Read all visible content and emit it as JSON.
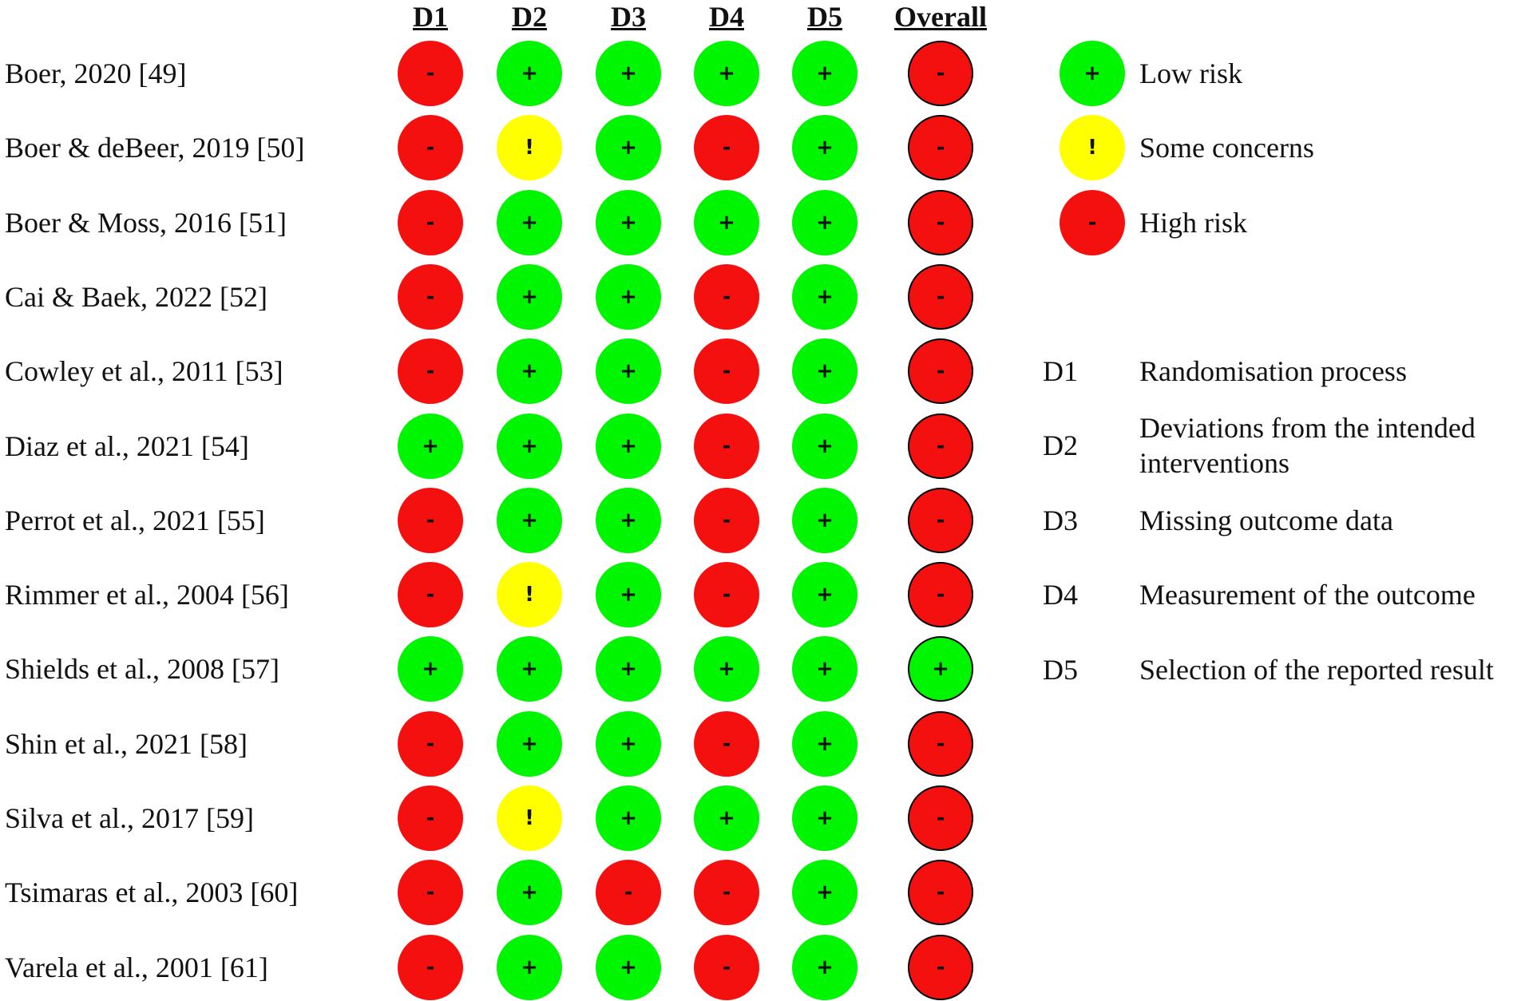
{
  "chart_data": {
    "type": "table",
    "columns": [
      "D1",
      "D2",
      "D3",
      "D4",
      "D5",
      "Overall"
    ],
    "rows": [
      {
        "study": "Boer, 2020 [49]",
        "judgements": [
          "high",
          "low",
          "low",
          "low",
          "low",
          "high"
        ]
      },
      {
        "study": "Boer & deBeer, 2019 [50]",
        "judgements": [
          "high",
          "some",
          "low",
          "high",
          "low",
          "high"
        ]
      },
      {
        "study": "Boer & Moss, 2016 [51]",
        "judgements": [
          "high",
          "low",
          "low",
          "low",
          "low",
          "high"
        ]
      },
      {
        "study": "Cai & Baek, 2022 [52]",
        "judgements": [
          "high",
          "low",
          "low",
          "high",
          "low",
          "high"
        ]
      },
      {
        "study": "Cowley et al., 2011 [53]",
        "judgements": [
          "high",
          "low",
          "low",
          "high",
          "low",
          "high"
        ]
      },
      {
        "study": "Diaz et al., 2021 [54]",
        "judgements": [
          "low",
          "low",
          "low",
          "high",
          "low",
          "high"
        ]
      },
      {
        "study": "Perrot et al., 2021 [55]",
        "judgements": [
          "high",
          "low",
          "low",
          "high",
          "low",
          "high"
        ]
      },
      {
        "study": "Rimmer et al., 2004 [56]",
        "judgements": [
          "high",
          "some",
          "low",
          "high",
          "low",
          "high"
        ]
      },
      {
        "study": "Shields et al., 2008 [57]",
        "judgements": [
          "low",
          "low",
          "low",
          "low",
          "low",
          "low"
        ]
      },
      {
        "study": "Shin et al., 2021 [58]",
        "judgements": [
          "high",
          "low",
          "low",
          "high",
          "low",
          "high"
        ]
      },
      {
        "study": "Silva et al., 2017 [59]",
        "judgements": [
          "high",
          "some",
          "low",
          "low",
          "low",
          "high"
        ]
      },
      {
        "study": "Tsimaras et al., 2003 [60]",
        "judgements": [
          "high",
          "low",
          "high",
          "high",
          "low",
          "high"
        ]
      },
      {
        "study": "Varela et al., 2001 [61]",
        "judgements": [
          "high",
          "low",
          "low",
          "high",
          "low",
          "high"
        ]
      }
    ],
    "judgement_key": {
      "low": {
        "symbol": "+",
        "label": "Low risk",
        "color": "#00f500"
      },
      "some": {
        "symbol": "!",
        "label": "Some concerns",
        "color": "#ffff00"
      },
      "high": {
        "symbol": "-",
        "label": "High risk",
        "color": "#f51010"
      }
    },
    "domains": [
      {
        "code": "D1",
        "label": "Randomisation process"
      },
      {
        "code": "D2",
        "label": "Deviations from the intended interventions"
      },
      {
        "code": "D3",
        "label": "Missing outcome data"
      },
      {
        "code": "D4",
        "label": "Measurement of the outcome"
      },
      {
        "code": "D5",
        "label": "Selection of the reported result"
      }
    ]
  }
}
